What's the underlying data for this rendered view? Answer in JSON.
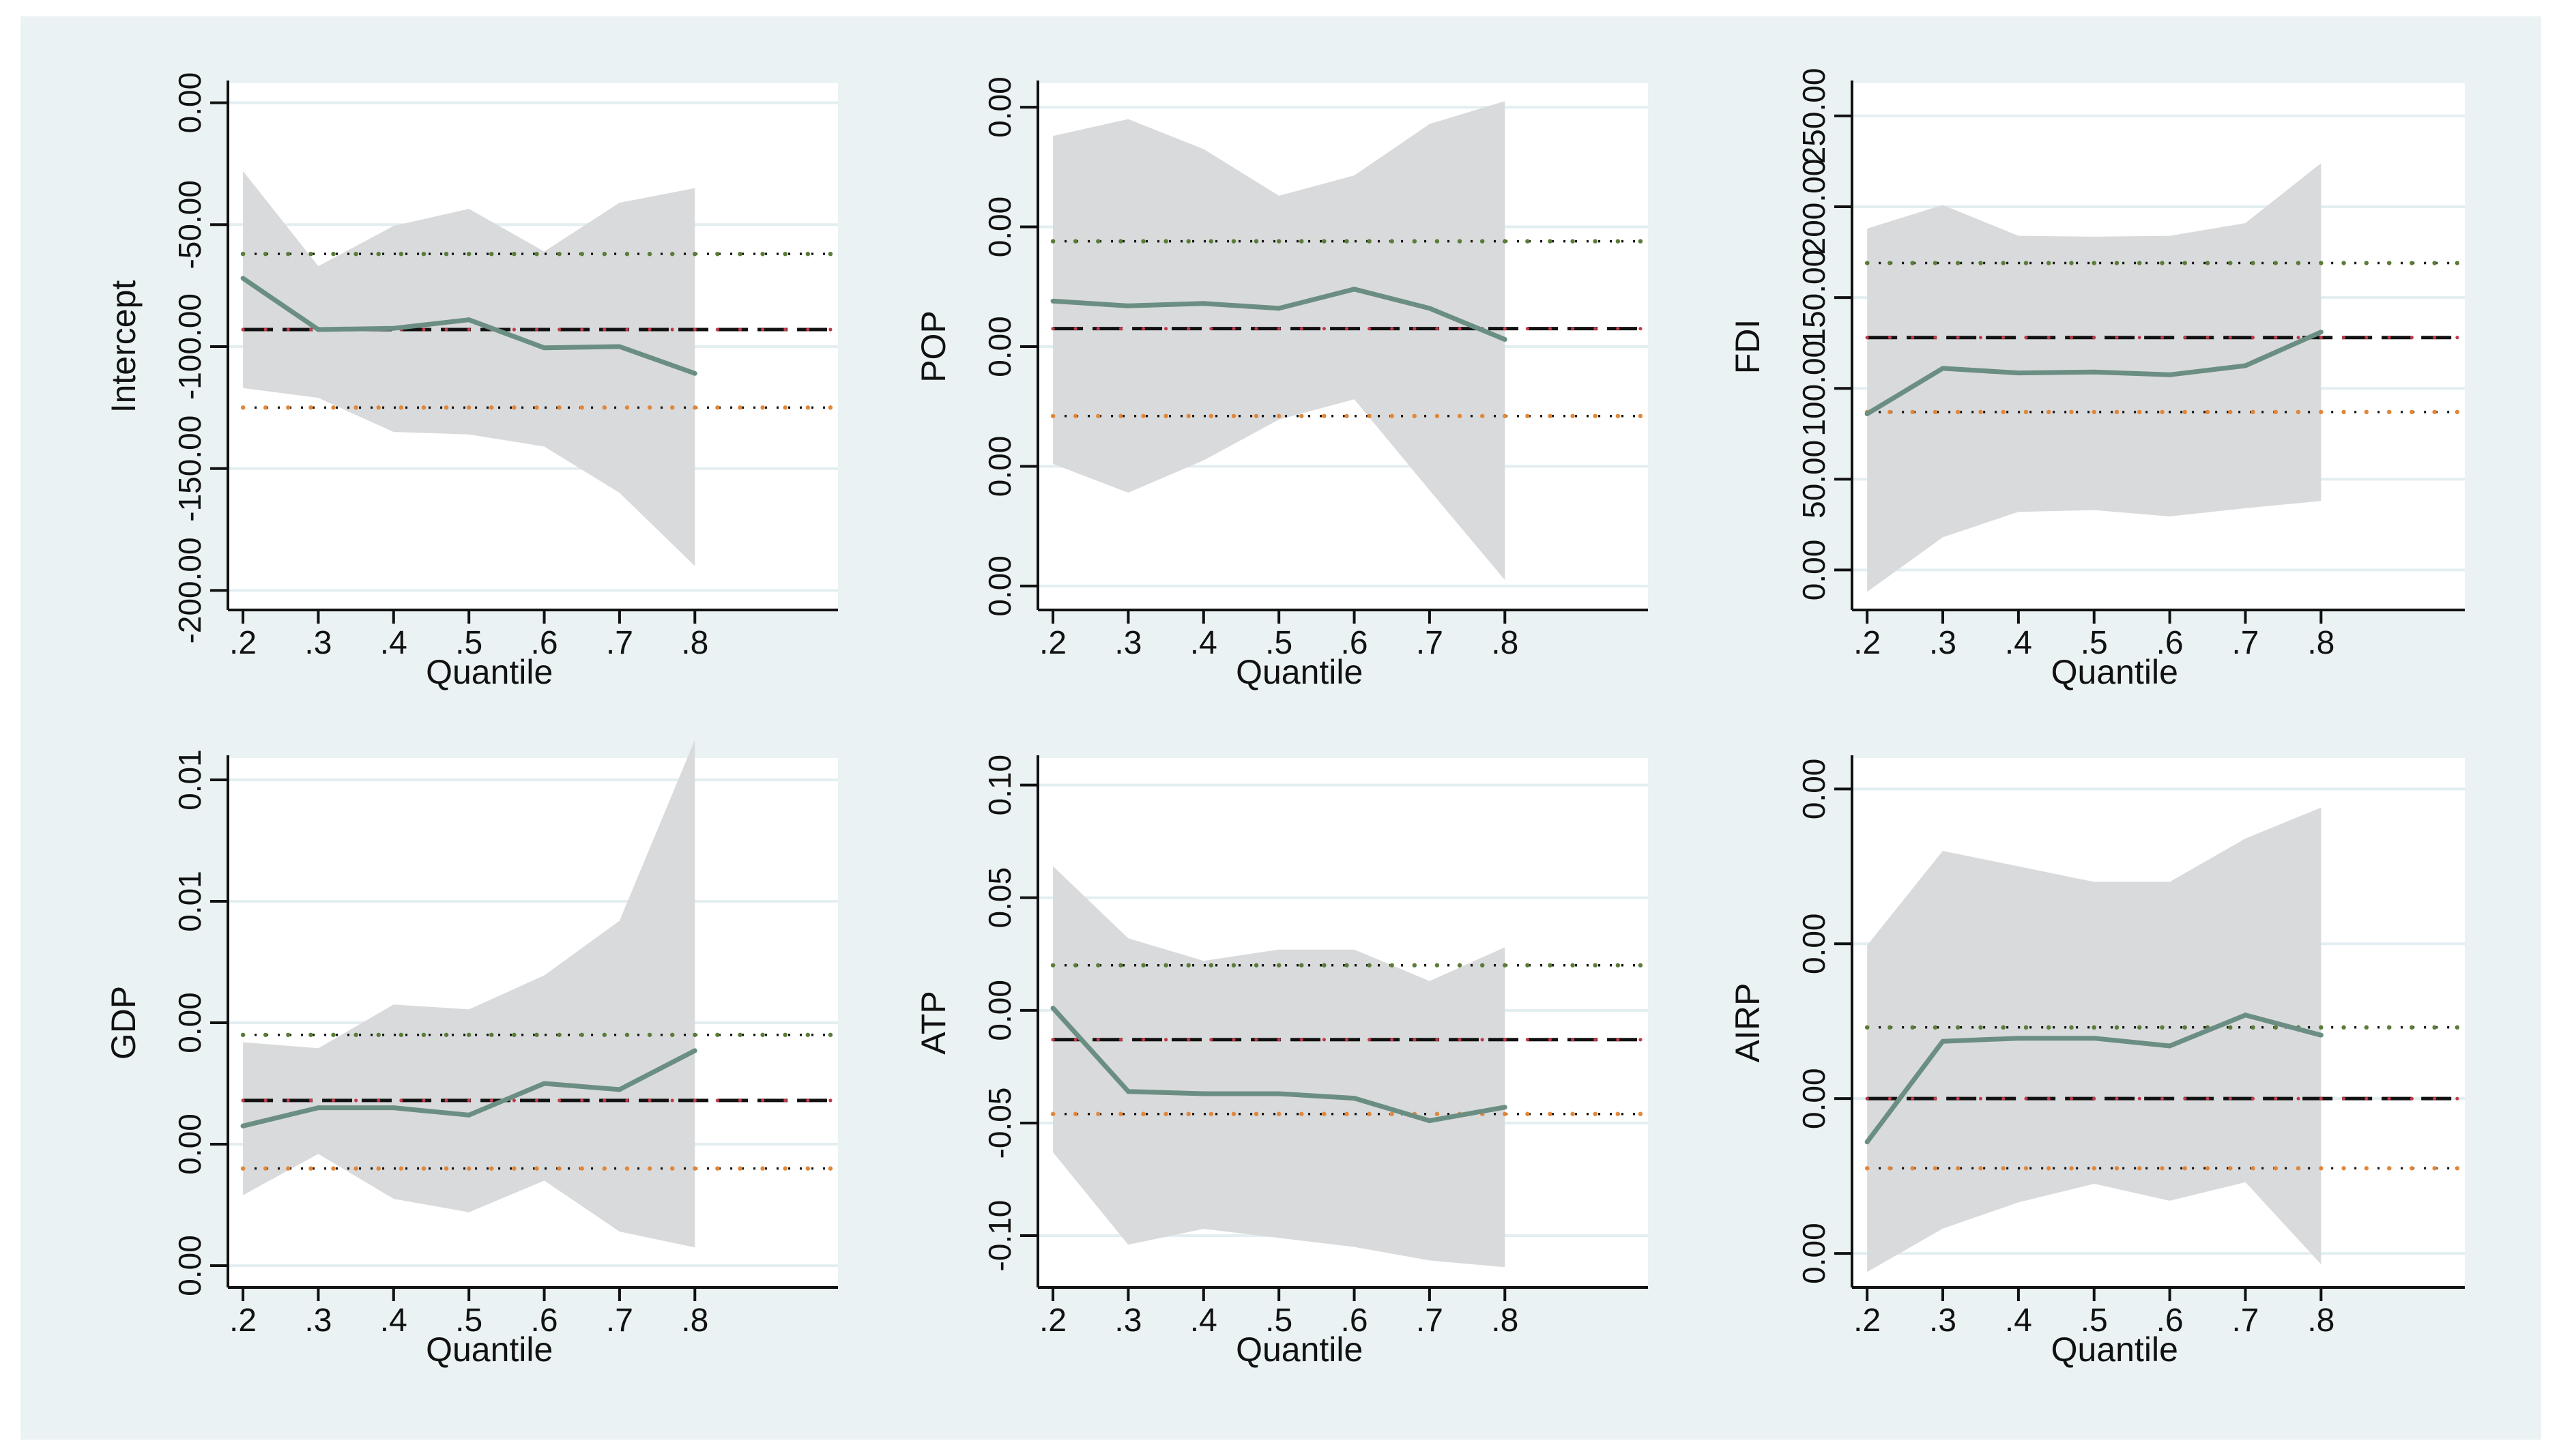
{
  "chart_data": [
    {
      "type": "line",
      "ylabel": "Intercept",
      "xlabel": "Quantile",
      "x": [
        0.2,
        0.3,
        0.4,
        0.5,
        0.6,
        0.7,
        0.8
      ],
      "xtick_labels": [
        ".2",
        ".3",
        ".4",
        ".5",
        ".6",
        ".7",
        ".8"
      ],
      "xlim": [
        0.18,
        0.99
      ],
      "yticks": [
        0,
        -50,
        -100,
        -150,
        -200
      ],
      "ytick_labels": [
        "0.00",
        "-50.00",
        "-100.00",
        "-150.00",
        "-200.00"
      ],
      "ylim": [
        -208,
        8
      ],
      "estimate": [
        -72,
        -93,
        -92.5,
        -89,
        -100.5,
        -100,
        -111
      ],
      "ci_upper": [
        -28,
        -67,
        -50.5,
        -43.5,
        -61,
        -41,
        -35
      ],
      "ci_lower": [
        -117,
        -121,
        -135,
        -136,
        -141,
        -160,
        -190
      ],
      "ols": -93,
      "ols_ci": [
        -62,
        -125
      ],
      "grid": true
    },
    {
      "type": "line",
      "ylabel": "POP",
      "xlabel": "Quantile",
      "x": [
        0.2,
        0.3,
        0.4,
        0.5,
        0.6,
        0.7,
        0.8
      ],
      "xtick_labels": [
        ".2",
        ".3",
        ".4",
        ".5",
        ".6",
        ".7",
        ".8"
      ],
      "xlim": [
        0.18,
        0.99
      ],
      "yticks": [
        4,
        3,
        2,
        1,
        0
      ],
      "ytick_labels": [
        "0.00",
        "0.00",
        "0.00",
        "0.00",
        "0.00"
      ],
      "ylim": [
        -0.2,
        4.2
      ],
      "estimate": [
        2.38,
        2.34,
        2.36,
        2.32,
        2.48,
        2.32,
        2.06
      ],
      "ci_upper": [
        3.76,
        3.9,
        3.65,
        3.26,
        3.43,
        3.86,
        4.05
      ],
      "ci_lower": [
        1.02,
        0.78,
        1.05,
        1.39,
        1.56,
        0.8,
        0.05
      ],
      "ols": 2.15,
      "ols_ci": [
        2.88,
        1.42
      ],
      "grid": true
    },
    {
      "type": "line",
      "ylabel": "FDI",
      "xlabel": "Quantile",
      "x": [
        0.2,
        0.3,
        0.4,
        0.5,
        0.6,
        0.7,
        0.8
      ],
      "xtick_labels": [
        ".2",
        ".3",
        ".4",
        ".5",
        ".6",
        ".7",
        ".8"
      ],
      "xlim": [
        0.18,
        0.99
      ],
      "yticks": [
        0,
        50,
        100,
        150,
        200,
        250
      ],
      "ytick_labels": [
        "0.00",
        "50.00",
        "100.00",
        "150.00",
        "200.00",
        "250.00"
      ],
      "ylim": [
        -22,
        268
      ],
      "estimate": [
        86,
        111,
        108.5,
        109,
        107.5,
        112.5,
        131
      ],
      "ci_upper": [
        188,
        201,
        184,
        183.5,
        184,
        191,
        224
      ],
      "ci_lower": [
        -12,
        18,
        32,
        33,
        29.5,
        34,
        38
      ],
      "ols": 128,
      "ols_ci": [
        169,
        87
      ],
      "grid": true
    },
    {
      "type": "line",
      "ylabel": "GDP",
      "xlabel": "Quantile",
      "x": [
        0.2,
        0.3,
        0.4,
        0.5,
        0.6,
        0.7,
        0.8
      ],
      "xtick_labels": [
        ".2",
        ".3",
        ".4",
        ".5",
        ".6",
        ".7",
        ".8"
      ],
      "xlim": [
        0.18,
        0.99
      ],
      "yticks": [
        0,
        1,
        2,
        3,
        4
      ],
      "ytick_labels": [
        "0.00",
        "0.00",
        "0.00",
        "0.01",
        "0.01"
      ],
      "ylim": [
        -0.18,
        4.18
      ],
      "estimate": [
        1.15,
        1.3,
        1.3,
        1.24,
        1.5,
        1.45,
        1.77
      ],
      "ci_upper": [
        1.84,
        1.79,
        2.15,
        2.11,
        2.39,
        2.84,
        4.33
      ],
      "ci_lower": [
        0.58,
        0.92,
        0.55,
        0.44,
        0.7,
        0.28,
        0.15
      ],
      "ols": 1.36,
      "ols_ci": [
        1.9,
        0.8
      ],
      "grid": true
    },
    {
      "type": "line",
      "ylabel": "ATP",
      "xlabel": "Quantile",
      "x": [
        0.2,
        0.3,
        0.4,
        0.5,
        0.6,
        0.7,
        0.8
      ],
      "xtick_labels": [
        ".2",
        ".3",
        ".4",
        ".5",
        ".6",
        ".7",
        ".8"
      ],
      "xlim": [
        0.18,
        0.99
      ],
      "yticks": [
        0.1,
        0.05,
        0,
        -0.05,
        -0.1
      ],
      "ytick_labels": [
        "0.10",
        "0.05",
        "0.00",
        "-0.05",
        "-0.10"
      ],
      "ylim": [
        -0.123,
        0.112
      ],
      "estimate": [
        0.001,
        -0.036,
        -0.037,
        -0.037,
        -0.039,
        -0.049,
        -0.043
      ],
      "ci_upper": [
        0.064,
        0.032,
        0.022,
        0.027,
        0.027,
        0.013,
        0.028
      ],
      "ci_lower": [
        -0.063,
        -0.104,
        -0.097,
        -0.101,
        -0.105,
        -0.111,
        -0.114
      ],
      "ols": -0.013,
      "ols_ci": [
        0.02,
        -0.046
      ],
      "grid": true
    },
    {
      "type": "line",
      "ylabel": "AIRP",
      "xlabel": "Quantile",
      "x": [
        0.2,
        0.3,
        0.4,
        0.5,
        0.6,
        0.7,
        0.8
      ],
      "xtick_labels": [
        ".2",
        ".3",
        ".4",
        ".5",
        ".6",
        ".7",
        ".8"
      ],
      "xlim": [
        0.18,
        0.99
      ],
      "yticks": [
        3,
        2,
        1,
        0
      ],
      "ytick_labels": [
        "0.00",
        "0.00",
        "0.00",
        "0.00"
      ],
      "ylim": [
        -0.22,
        3.2
      ],
      "estimate": [
        0.72,
        1.37,
        1.39,
        1.39,
        1.34,
        1.54,
        1.41
      ],
      "ci_upper": [
        1.99,
        2.6,
        2.5,
        2.4,
        2.4,
        2.68,
        2.88
      ],
      "ci_lower": [
        -0.12,
        0.16,
        0.33,
        0.45,
        0.34,
        0.46,
        -0.07
      ],
      "ols": 1.0,
      "ols_ci": [
        1.46,
        0.55
      ],
      "grid": true
    }
  ]
}
